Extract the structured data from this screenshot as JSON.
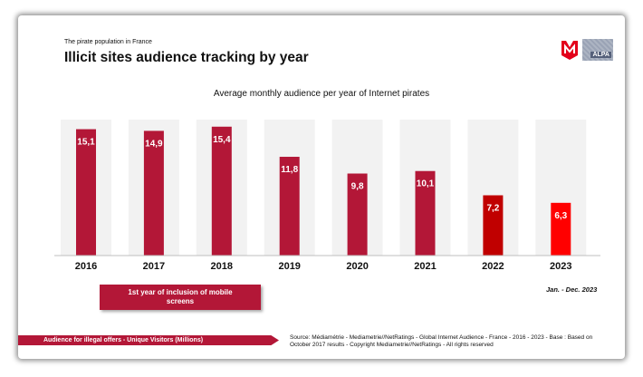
{
  "header": {
    "kicker": "The pirate population in France",
    "title": "Illicit sites audience tracking by year",
    "logo_alpa_text": "ALPA"
  },
  "chart_data": {
    "type": "bar",
    "title": "Average monthly audience per year of Internet pirates",
    "categories": [
      "2016",
      "2017",
      "2018",
      "2019",
      "2020",
      "2021",
      "2022",
      "2023"
    ],
    "values": [
      15.1,
      14.9,
      15.4,
      11.8,
      9.8,
      10.1,
      7.2,
      6.3
    ],
    "value_labels": [
      "15,1",
      "14,9",
      "15,4",
      "11,8",
      "9,8",
      "10,1",
      "7,2",
      "6,3"
    ],
    "ylim": [
      0,
      17
    ],
    "grid": false,
    "colors": [
      "#b31737",
      "#b31737",
      "#b31737",
      "#b31737",
      "#b31737",
      "#b31737",
      "#c00000",
      "#ff0000"
    ],
    "background_column_color": "#f2f2f2"
  },
  "annotations": {
    "period": "Jan. - Dec. 2023",
    "callout": "1st year of inclusion of mobile screens"
  },
  "footer": {
    "legend_label": "Audience for illegal offers - Unique Visitors (Millions)",
    "source": "Source: Médiamétrie - Mediametrie//NetRatings - Global Internet Audience - France - 2016 - 2023 - Base : Based on October 2017 results - Copyright Mediametrie//NetRatings - All rights reserved"
  }
}
